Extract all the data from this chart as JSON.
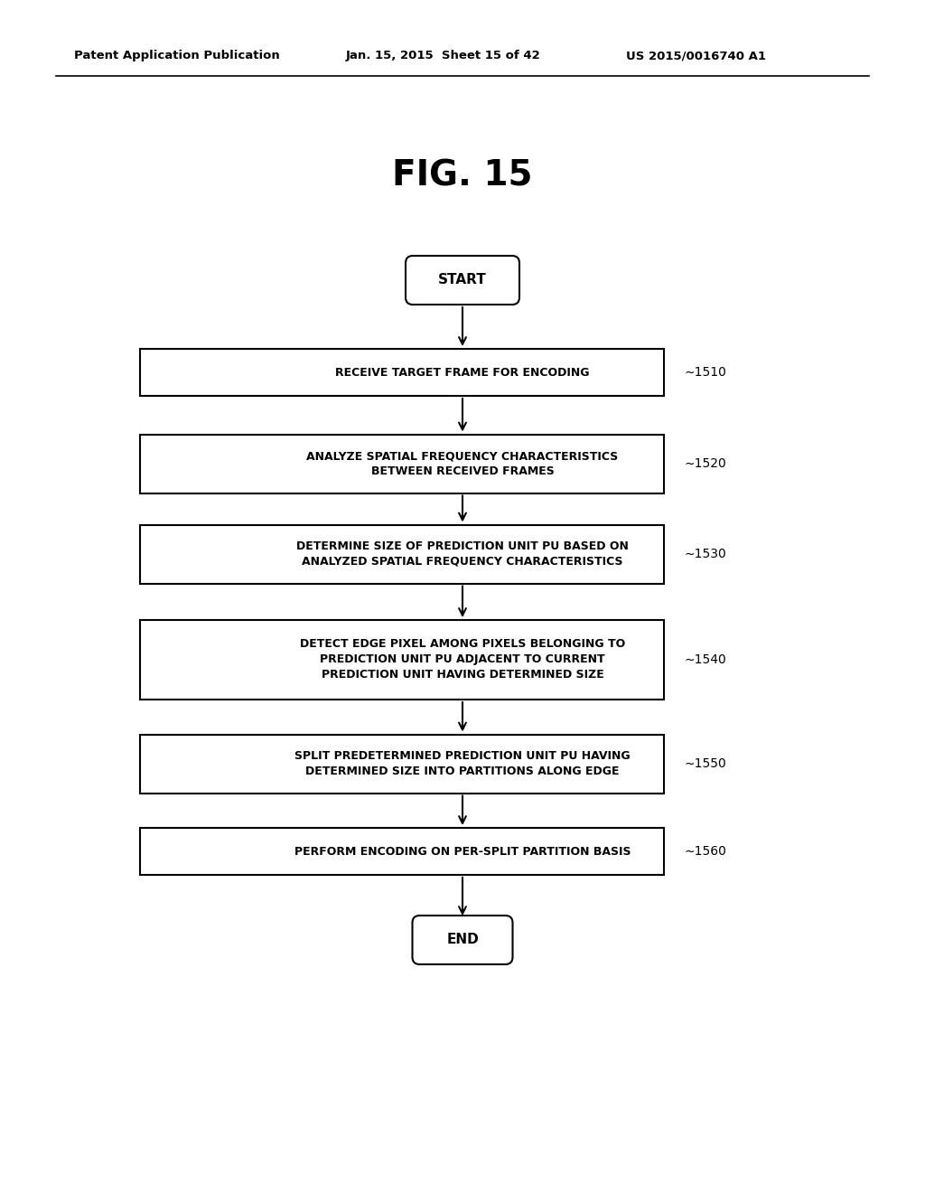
{
  "title": "FIG. 15",
  "header_left": "Patent Application Publication",
  "header_mid": "Jan. 15, 2015  Sheet 15 of 42",
  "header_right": "US 2015/0016740 A1",
  "start_label": "START",
  "end_label": "END",
  "boxes": [
    {
      "id": "1510",
      "lines": [
        "RECEIVE TARGET FRAME FOR ENCODING"
      ],
      "label": "1510"
    },
    {
      "id": "1520",
      "lines": [
        "ANALYZE SPATIAL FREQUENCY CHARACTERISTICS",
        "BETWEEN RECEIVED FRAMES"
      ],
      "label": "1520"
    },
    {
      "id": "1530",
      "lines": [
        "DETERMINE SIZE OF PREDICTION UNIT PU BASED ON",
        "ANALYZED SPATIAL FREQUENCY CHARACTERISTICS"
      ],
      "label": "1530"
    },
    {
      "id": "1540",
      "lines": [
        "DETECT EDGE PIXEL AMONG PIXELS BELONGING TO",
        "PREDICTION UNIT PU ADJACENT TO CURRENT",
        "PREDICTION UNIT HAVING DETERMINED SIZE"
      ],
      "label": "1540"
    },
    {
      "id": "1550",
      "lines": [
        "SPLIT PREDETERMINED PREDICTION UNIT PU HAVING",
        "DETERMINED SIZE INTO PARTITIONS ALONG EDGE"
      ],
      "label": "1550"
    },
    {
      "id": "1560",
      "lines": [
        "PERFORM ENCODING ON PER-SPLIT PARTITION BASIS"
      ],
      "label": "1560"
    }
  ],
  "background_color": "#ffffff",
  "box_edge_color": "#000000",
  "text_color": "#000000",
  "arrow_color": "#000000",
  "fig_width": 10.24,
  "fig_height": 13.2,
  "dpi": 100
}
